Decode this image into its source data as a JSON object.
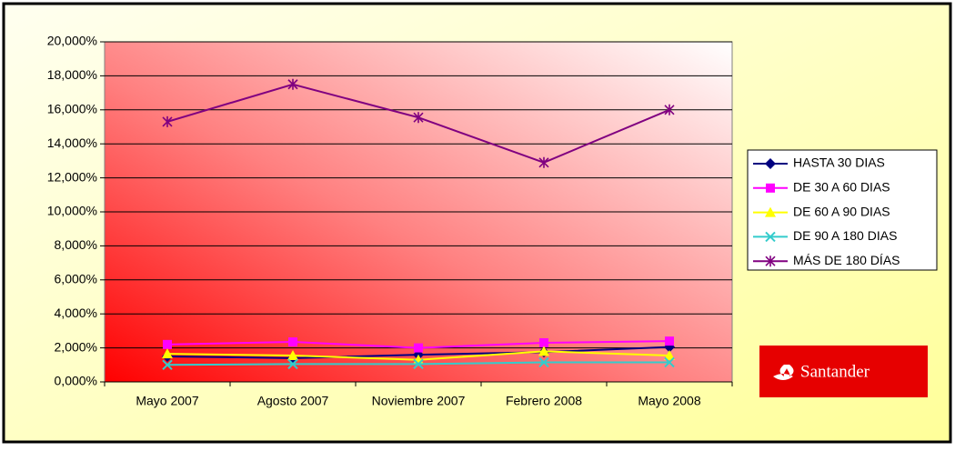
{
  "chart_data": {
    "type": "line",
    "categories": [
      "Mayo 2007",
      "Agosto 2007",
      "Noviembre 2007",
      "Febrero 2008",
      "Mayo 2008"
    ],
    "series": [
      {
        "name": "HASTA 30 DIAS",
        "color": "#000080",
        "marker": "diamond",
        "values": [
          1.5,
          1.4,
          1.6,
          1.75,
          2.05
        ]
      },
      {
        "name": "DE 30 A 60 DIAS",
        "color": "#ff00ff",
        "marker": "square",
        "values": [
          2.2,
          2.35,
          2.0,
          2.3,
          2.4
        ]
      },
      {
        "name": "DE 60 A 90 DIAS",
        "color": "#ffff00",
        "marker": "triangle",
        "values": [
          1.65,
          1.55,
          1.3,
          1.8,
          1.55
        ]
      },
      {
        "name": "DE 90 A 180 DIAS",
        "color": "#33cccc",
        "marker": "x",
        "values": [
          1.0,
          1.05,
          1.05,
          1.15,
          1.15
        ]
      },
      {
        "name": "MÁS DE 180 DÍAS",
        "color": "#800080",
        "marker": "star",
        "values": [
          15.3,
          17.5,
          15.55,
          12.9,
          16.0
        ]
      }
    ],
    "ylim": [
      0,
      20
    ],
    "yticks": [
      {
        "value": 0,
        "label": "0,000%"
      },
      {
        "value": 2,
        "label": "2,000%"
      },
      {
        "value": 4,
        "label": "4,000%"
      },
      {
        "value": 6,
        "label": "6,000%"
      },
      {
        "value": 8,
        "label": "8,000%"
      },
      {
        "value": 10,
        "label": "10,000%"
      },
      {
        "value": 12,
        "label": "12,000%"
      },
      {
        "value": 14,
        "label": "14,000%"
      },
      {
        "value": 16,
        "label": "16,000%"
      },
      {
        "value": 18,
        "label": "18,000%"
      },
      {
        "value": 20,
        "label": "20,000%"
      }
    ],
    "grid": true,
    "legend": "right"
  },
  "logo": "Santander"
}
